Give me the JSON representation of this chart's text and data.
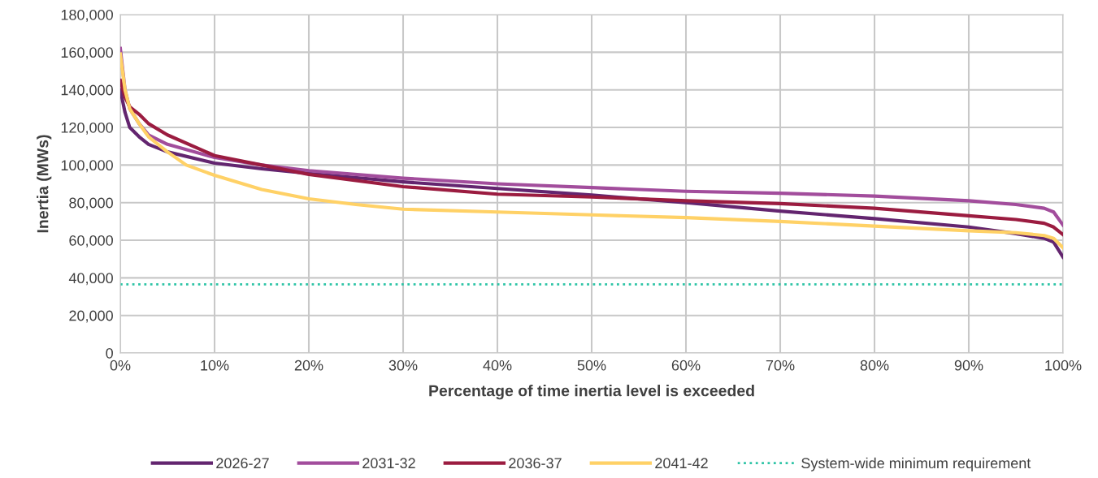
{
  "chart_data": {
    "type": "line",
    "xlabel": "Percentage of time inertia level is exceeded",
    "ylabel": "Inertia (MWs)",
    "xlim": [
      0,
      100
    ],
    "xticks": [
      {
        "value": 0,
        "label": "0%"
      },
      {
        "value": 10,
        "label": "10%"
      },
      {
        "value": 20,
        "label": "20%"
      },
      {
        "value": 30,
        "label": "30%"
      },
      {
        "value": 40,
        "label": "40%"
      },
      {
        "value": 50,
        "label": "50%"
      },
      {
        "value": 60,
        "label": "60%"
      },
      {
        "value": 70,
        "label": "70%"
      },
      {
        "value": 80,
        "label": "80%"
      },
      {
        "value": 90,
        "label": "90%"
      },
      {
        "value": 100,
        "label": "100%"
      }
    ],
    "ylim": [
      0,
      180000
    ],
    "yticks": [
      {
        "value": 0,
        "label": "0"
      },
      {
        "value": 20000,
        "label": "20,000"
      },
      {
        "value": 40000,
        "label": "40,000"
      },
      {
        "value": 60000,
        "label": "60,000"
      },
      {
        "value": 80000,
        "label": "80,000"
      },
      {
        "value": 100000,
        "label": "100,000"
      },
      {
        "value": 120000,
        "label": "120,000"
      },
      {
        "value": 140000,
        "label": "140,000"
      },
      {
        "value": 160000,
        "label": "160,000"
      },
      {
        "value": 180000,
        "label": "180,000"
      }
    ],
    "grid": true,
    "legend": "bottom",
    "marker": "none",
    "line_style": "solid",
    "series": [
      {
        "name": "2026-27",
        "color": "#63256f",
        "x": [
          0,
          0.5,
          1,
          2,
          3,
          5,
          10,
          15,
          20,
          30,
          40,
          50,
          60,
          70,
          80,
          90,
          95,
          98,
          99,
          100
        ],
        "values": [
          140000,
          128000,
          120000,
          115000,
          111000,
          107000,
          101000,
          98000,
          95500,
          91000,
          87500,
          84000,
          80000,
          75500,
          71500,
          67000,
          63500,
          61000,
          59000,
          51000
        ]
      },
      {
        "name": "2031-32",
        "color": "#a24d9c",
        "x": [
          0,
          0.5,
          1,
          2,
          3,
          5,
          10,
          15,
          20,
          30,
          40,
          50,
          60,
          70,
          80,
          90,
          95,
          98,
          99,
          100
        ],
        "values": [
          162000,
          140000,
          130000,
          122000,
          116000,
          111000,
          104000,
          100000,
          97000,
          93000,
          90000,
          88000,
          86000,
          85000,
          83500,
          81000,
          79000,
          77000,
          75000,
          68000
        ]
      },
      {
        "name": "2036-37",
        "color": "#9b1c40",
        "x": [
          0,
          0.5,
          1,
          2,
          3,
          5,
          10,
          15,
          20,
          30,
          40,
          50,
          60,
          70,
          80,
          90,
          95,
          98,
          99,
          100
        ],
        "values": [
          145000,
          136000,
          131000,
          127000,
          122000,
          116000,
          105000,
          100000,
          95000,
          88500,
          84500,
          83000,
          81000,
          79500,
          77000,
          73000,
          71000,
          69000,
          67000,
          63000
        ]
      },
      {
        "name": "2041-42",
        "color": "#ffd166",
        "x": [
          0,
          0.5,
          1,
          2,
          3,
          5,
          7,
          10,
          15,
          20,
          25,
          30,
          40,
          50,
          60,
          70,
          80,
          90,
          95,
          98,
          99,
          100
        ],
        "values": [
          159000,
          140000,
          130000,
          122000,
          115000,
          107000,
          100000,
          94500,
          87000,
          82000,
          79000,
          76500,
          75000,
          73500,
          72000,
          70000,
          67500,
          65000,
          64000,
          62500,
          61000,
          56000
        ]
      }
    ],
    "ref_lines": [
      {
        "axis": "y",
        "value": 36500,
        "label": "System-wide minimum requirement",
        "color": "#2ec4a6",
        "line_style": "dotted"
      }
    ]
  }
}
